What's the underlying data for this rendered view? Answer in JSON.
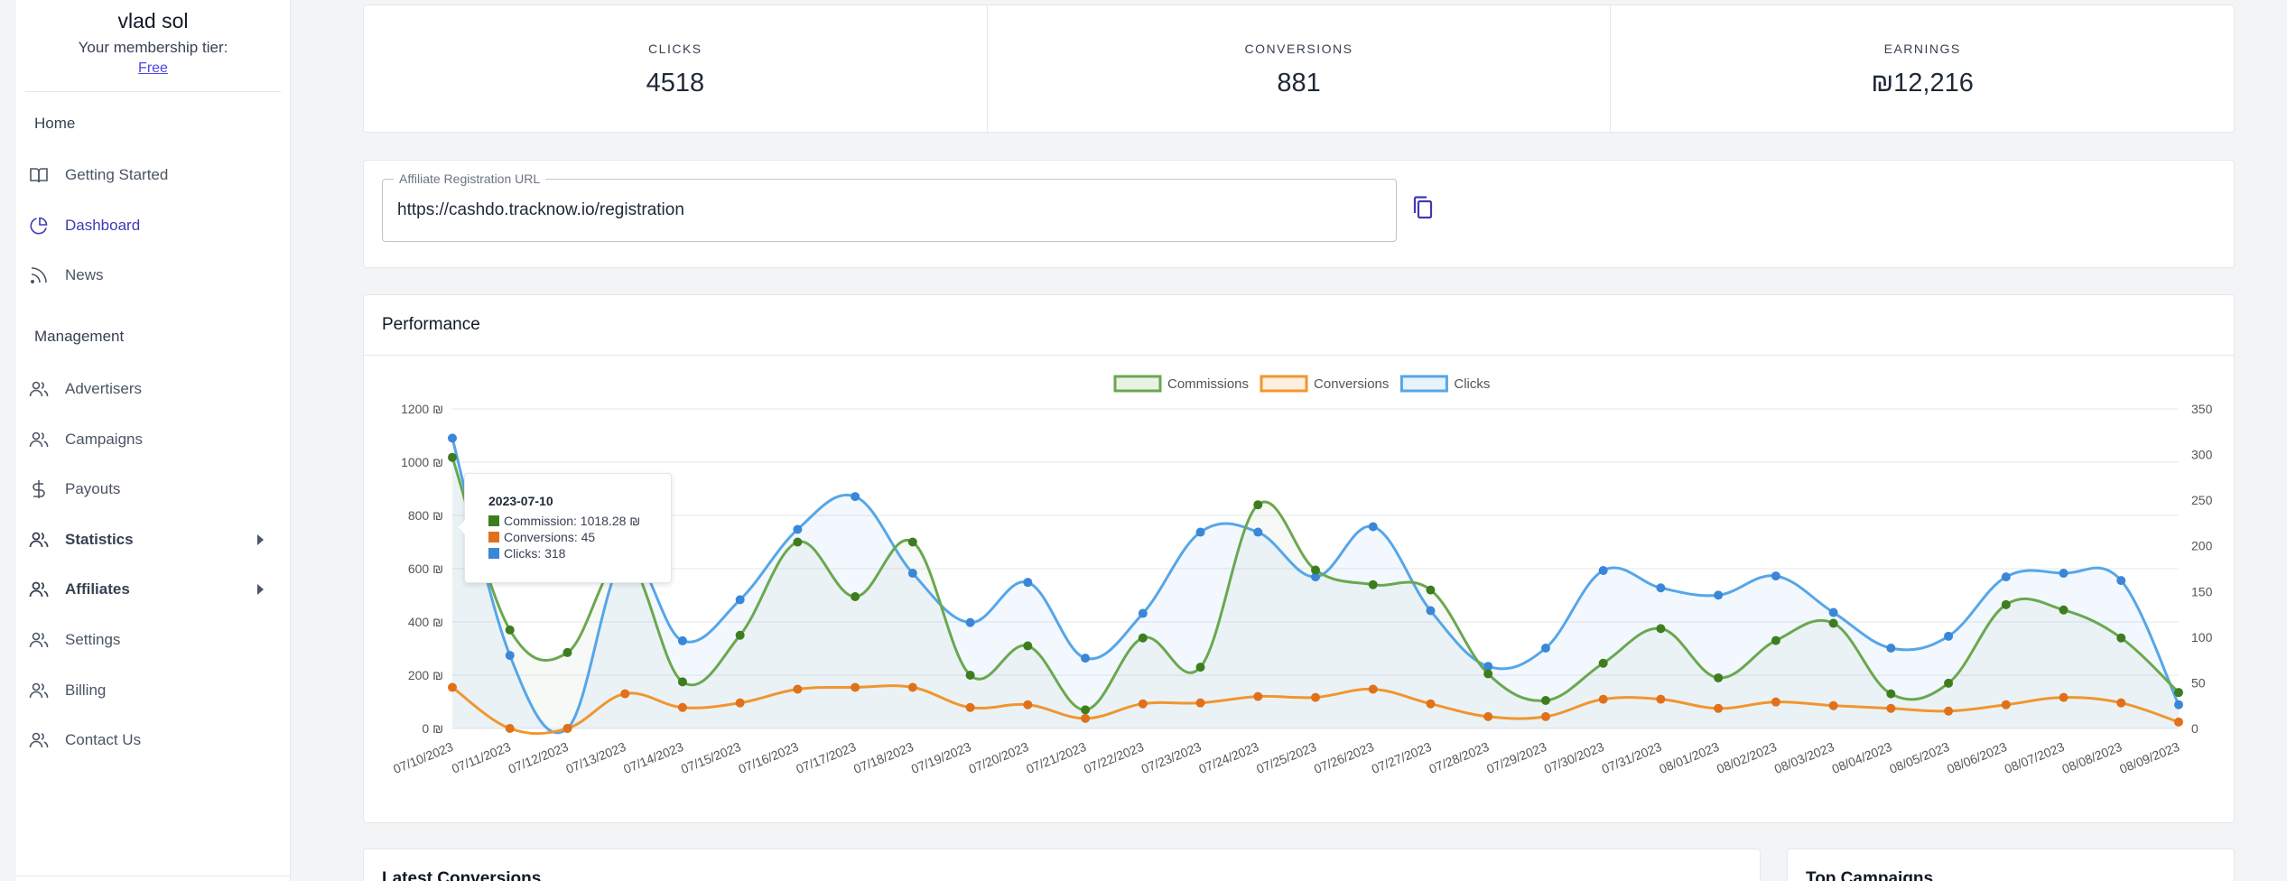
{
  "user": {
    "name": "vlad sol",
    "tier_label": "Your membership tier:",
    "tier_value": "Free"
  },
  "nav": {
    "section_home": "Home",
    "home_items": [
      {
        "label": "Getting Started",
        "icon": "book-icon"
      },
      {
        "label": "Dashboard",
        "icon": "pie-chart-icon"
      },
      {
        "label": "News",
        "icon": "rss-icon"
      }
    ],
    "section_management": "Management",
    "management_items": [
      {
        "label": "Advertisers",
        "icon": "users-icon"
      },
      {
        "label": "Campaigns",
        "icon": "users-icon"
      },
      {
        "label": "Payouts",
        "icon": "dollar-icon"
      },
      {
        "label": "Statistics",
        "icon": "users-icon"
      },
      {
        "label": "Affiliates",
        "icon": "users-icon"
      },
      {
        "label": "Settings",
        "icon": "users-icon"
      },
      {
        "label": "Billing",
        "icon": "users-icon"
      },
      {
        "label": "Contact Us",
        "icon": "users-icon"
      }
    ]
  },
  "stats": [
    {
      "label": "CLICKS",
      "value": "4518"
    },
    {
      "label": "CONVERSIONS",
      "value": "881"
    },
    {
      "label": "EARNINGS",
      "value": "₪12,216"
    }
  ],
  "registration": {
    "label": "Affiliate Registration URL",
    "value": "https://cashdo.tracknow.io/registration",
    "copy_icon": "copy-icon"
  },
  "performance": {
    "title": "Performance"
  },
  "tooltip": {
    "title": "2023-07-10",
    "commission": "Commission: 1018.28 ₪",
    "conversions": "Conversions: 45",
    "clicks": "Clicks: 318"
  },
  "bottom": {
    "latest": "Latest Conversions",
    "top": "Top Campaigns"
  },
  "colors": {
    "commissions": "#6aa84f",
    "conversions": "#f0962f",
    "clicks": "#56a6e8",
    "accent": "#3f3ab2"
  },
  "chart_data": {
    "type": "line",
    "x": [
      "07/10/2023",
      "07/11/2023",
      "07/12/2023",
      "07/13/2023",
      "07/14/2023",
      "07/15/2023",
      "07/16/2023",
      "07/17/2023",
      "07/18/2023",
      "07/19/2023",
      "07/20/2023",
      "07/21/2023",
      "07/22/2023",
      "07/23/2023",
      "07/24/2023",
      "07/25/2023",
      "07/26/2023",
      "07/27/2023",
      "07/28/2023",
      "07/29/2023",
      "07/30/2023",
      "07/31/2023",
      "08/01/2023",
      "08/02/2023",
      "08/03/2023",
      "08/04/2023",
      "08/05/2023",
      "08/06/2023",
      "08/07/2023",
      "08/08/2023",
      "08/09/2023"
    ],
    "y_left_ticks": [
      "0 ₪",
      "200 ₪",
      "400 ₪",
      "600 ₪",
      "800 ₪",
      "1000 ₪",
      "1200 ₪"
    ],
    "y_left_range": [
      0,
      1200
    ],
    "y_right_ticks": [
      "0",
      "50",
      "100",
      "150",
      "200",
      "250",
      "300",
      "350"
    ],
    "y_right_range": [
      0,
      350
    ],
    "legend": "top-center",
    "series": [
      {
        "name": "Commissions",
        "axis": "left",
        "values": [
          1018,
          370,
          285,
          640,
          175,
          350,
          700,
          495,
          700,
          200,
          310,
          70,
          340,
          230,
          840,
          595,
          540,
          520,
          205,
          105,
          245,
          375,
          190,
          330,
          395,
          130,
          170,
          465,
          445,
          340,
          135
        ]
      },
      {
        "name": "Conversions",
        "axis": "right",
        "values": [
          45,
          0,
          0,
          38,
          23,
          28,
          43,
          45,
          45,
          23,
          26,
          11,
          27,
          28,
          35,
          34,
          43,
          27,
          13,
          13,
          32,
          32,
          22,
          29,
          25,
          22,
          19,
          26,
          34,
          28,
          7
        ]
      },
      {
        "name": "Clicks",
        "axis": "right",
        "values": [
          318,
          80,
          0,
          188,
          96,
          141,
          218,
          254,
          170,
          116,
          160,
          77,
          126,
          215,
          215,
          166,
          221,
          129,
          68,
          88,
          173,
          154,
          146,
          167,
          127,
          88,
          101,
          166,
          170,
          162,
          26
        ]
      }
    ]
  }
}
